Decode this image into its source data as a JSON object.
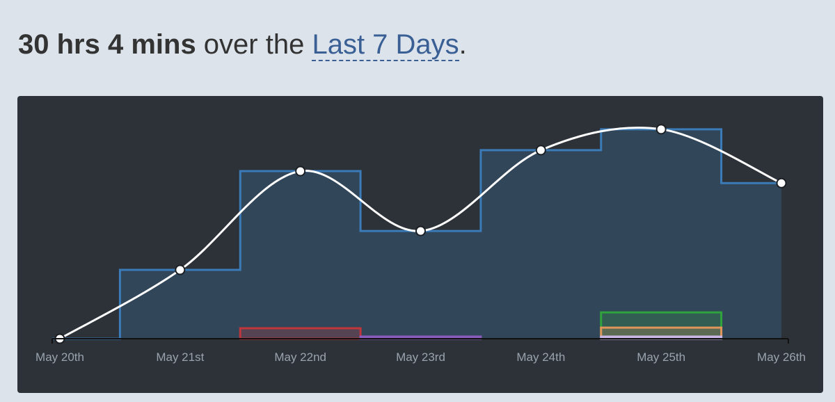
{
  "chart_data": {
    "type": "line",
    "title": {
      "total": "30 hrs 4 mins",
      "text": " over the ",
      "range": "Last 7 Days",
      "end": "."
    },
    "categories": [
      "May 20th",
      "May 21st",
      "May 22nd",
      "May 23rd",
      "May 24th",
      "May 25th",
      "May 26th"
    ],
    "values": [
      0,
      2.3,
      5.6,
      3.6,
      6.3,
      7.0,
      5.2
    ],
    "color": "#3a7bb8",
    "line_color": "#ffffff",
    "series": [
      {
        "color": "#c0363a",
        "values": [
          null,
          null,
          0.35,
          null,
          null,
          null,
          null
        ]
      },
      {
        "color": "#8a5cc0",
        "values": [
          null,
          null,
          null,
          0.07,
          null,
          null,
          null
        ]
      },
      {
        "color": "#2fa33c",
        "values": [
          null,
          null,
          null,
          null,
          null,
          0.88,
          null
        ]
      },
      {
        "color": "#e0955a",
        "values": [
          null,
          null,
          null,
          null,
          null,
          0.37,
          null
        ]
      },
      {
        "color": "#c9b6e6",
        "values": [
          null,
          null,
          null,
          null,
          null,
          0.07,
          null
        ]
      }
    ],
    "ylim": [
      0,
      7.6
    ]
  }
}
